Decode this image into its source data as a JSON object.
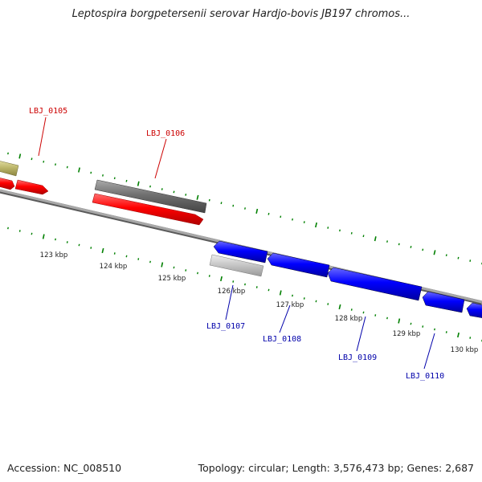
{
  "title": "Leptospira borgpetersenii serovar Hardjo-bovis JB197 chromos...",
  "footer": {
    "accession": "Accession: NC_008510",
    "stats": "Topology: circular; Length: 3,576,473 bp; Genes: 2,687"
  },
  "colors": {
    "forward_gene": "#ff0000",
    "reverse_gene": "#0000ff",
    "forward_label": "#cc0000",
    "reverse_label": "#0000aa",
    "pseudo_dark": "#777777",
    "pseudo_light": "#c8c8c8",
    "other_feature": "#bdb76b",
    "backbone": "#8c8c8c",
    "ticks": "#008000"
  },
  "scale_labels": [
    "123 kbp",
    "124 kbp",
    "125 kbp",
    "126 kbp",
    "127 kbp",
    "128 kbp",
    "129 kbp",
    "130 kbp"
  ],
  "gene_labels": [
    {
      "name": "LBJ_0105",
      "strand": "forward"
    },
    {
      "name": "LBJ_0106",
      "strand": "forward"
    },
    {
      "name": "LBJ_0107",
      "strand": "reverse"
    },
    {
      "name": "LBJ_0108",
      "strand": "reverse"
    },
    {
      "name": "LBJ_0109",
      "strand": "reverse"
    },
    {
      "name": "LBJ_0110",
      "strand": "reverse"
    }
  ]
}
